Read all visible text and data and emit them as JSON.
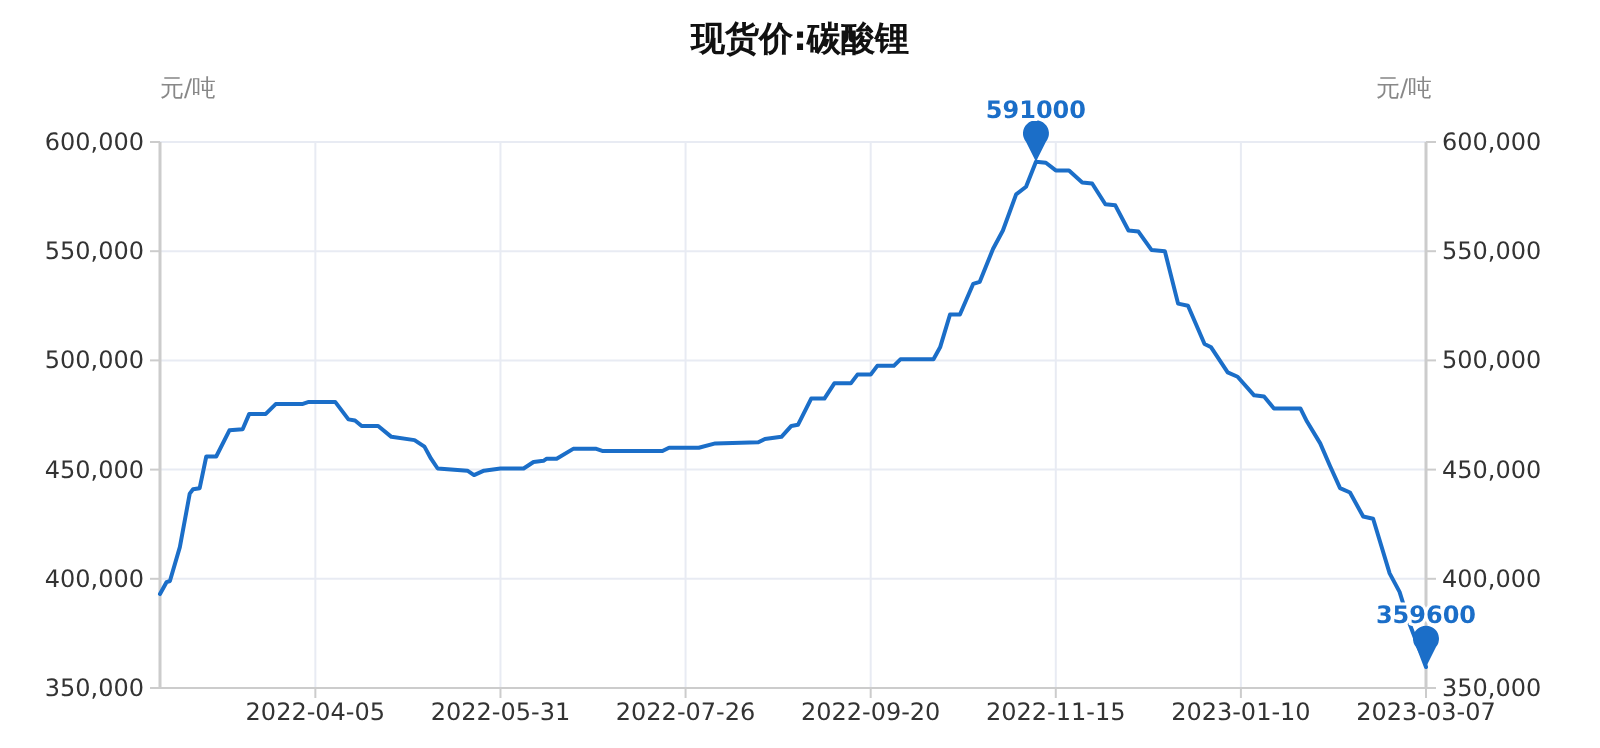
{
  "chart_data": {
    "type": "line",
    "title": "现货价:碳酸锂",
    "ylabel": "元/吨",
    "y2label": "元/吨",
    "xlim": [
      "2022-02-17",
      "2023-03-07"
    ],
    "xticks": [
      "2022-04-05",
      "2022-05-31",
      "2022-07-26",
      "2022-09-20",
      "2022-11-15",
      "2023-01-10",
      "2023-03-07"
    ],
    "ylim": [
      350000,
      600000
    ],
    "yticks": [
      {
        "value": 350000,
        "label": "350,000"
      },
      {
        "value": 400000,
        "label": "400,000"
      },
      {
        "value": 450000,
        "label": "450,000"
      },
      {
        "value": 500000,
        "label": "500,000"
      },
      {
        "value": 550000,
        "label": "550,000"
      },
      {
        "value": 600000,
        "label": "600,000"
      }
    ],
    "y2lim": [
      350000,
      600000
    ],
    "y2ticks": [
      {
        "value": 350000,
        "label": "350,000"
      },
      {
        "value": 400000,
        "label": "400,000"
      },
      {
        "value": 450000,
        "label": "450,000"
      },
      {
        "value": 500000,
        "label": "500,000"
      },
      {
        "value": 550000,
        "label": "550,000"
      },
      {
        "value": 600000,
        "label": "600,000"
      }
    ],
    "grid": true,
    "marker": "none",
    "line_style": "solid",
    "annotations": [
      {
        "text": "591000",
        "x": "2022-11-09",
        "y": 591000
      },
      {
        "text": "359600",
        "x": "2023-03-07",
        "y": 359600
      }
    ],
    "series": [
      {
        "color": "#1b6ec8",
        "x": [
          "2022-02-17",
          "2022-02-19",
          "2022-02-20",
          "2022-02-23",
          "2022-02-26",
          "2022-02-27",
          "2022-03-01",
          "2022-03-03",
          "2022-03-06",
          "2022-03-10",
          "2022-03-14",
          "2022-03-16",
          "2022-03-21",
          "2022-03-24",
          "2022-04-01",
          "2022-04-03",
          "2022-04-11",
          "2022-04-15",
          "2022-04-17",
          "2022-04-19",
          "2022-04-24",
          "2022-04-28",
          "2022-05-05",
          "2022-05-08",
          "2022-05-10",
          "2022-05-12",
          "2022-05-16",
          "2022-05-21",
          "2022-05-23",
          "2022-05-26",
          "2022-05-31",
          "2022-06-07",
          "2022-06-10",
          "2022-06-13",
          "2022-06-14",
          "2022-06-17",
          "2022-06-22",
          "2022-06-29",
          "2022-07-01",
          "2022-07-19",
          "2022-07-21",
          "2022-07-30",
          "2022-08-04",
          "2022-08-17",
          "2022-08-19",
          "2022-08-24",
          "2022-08-27",
          "2022-08-29",
          "2022-09-02",
          "2022-09-06",
          "2022-09-09",
          "2022-09-14",
          "2022-09-16",
          "2022-09-20",
          "2022-09-22",
          "2022-09-27",
          "2022-09-29",
          "2022-10-09",
          "2022-10-11",
          "2022-10-14",
          "2022-10-17",
          "2022-10-21",
          "2022-10-23",
          "2022-10-27",
          "2022-10-30",
          "2022-11-03",
          "2022-11-06",
          "2022-11-09",
          "2022-11-12",
          "2022-11-15",
          "2022-11-19",
          "2022-11-23",
          "2022-11-26",
          "2022-11-30",
          "2022-12-03",
          "2022-12-07",
          "2022-12-10",
          "2022-12-14",
          "2022-12-18",
          "2022-12-22",
          "2022-12-25",
          "2022-12-30",
          "2023-01-01",
          "2023-01-06",
          "2023-01-09",
          "2023-01-14",
          "2023-01-17",
          "2023-01-20",
          "2023-01-28",
          "2023-01-30",
          "2023-02-03",
          "2023-02-06",
          "2023-02-09",
          "2023-02-12",
          "2023-02-16",
          "2023-02-19",
          "2023-02-24",
          "2023-02-27",
          "2023-03-02",
          "2023-03-07"
        ],
        "values": [
          393000,
          398500,
          399000,
          414500,
          439000,
          441000,
          441500,
          456000,
          456000,
          468000,
          468500,
          475500,
          475500,
          480000,
          480000,
          481000,
          481000,
          473000,
          472500,
          470000,
          470000,
          465000,
          463500,
          460500,
          455000,
          450500,
          450000,
          449500,
          447500,
          449500,
          450500,
          450500,
          453500,
          454000,
          455000,
          455000,
          459500,
          459500,
          458500,
          458500,
          460000,
          460000,
          462000,
          462500,
          464000,
          465000,
          470000,
          470500,
          482500,
          482500,
          489500,
          489500,
          493500,
          493500,
          497500,
          497500,
          500500,
          500500,
          506000,
          521000,
          521000,
          535000,
          536000,
          551000,
          559500,
          576000,
          579500,
          591000,
          590500,
          587000,
          587000,
          581500,
          581000,
          571500,
          571000,
          559500,
          559000,
          550500,
          550000,
          526000,
          525000,
          507500,
          506000,
          494500,
          492500,
          484000,
          483500,
          478000,
          478000,
          472000,
          462000,
          451500,
          441500,
          439500,
          428500,
          427500,
          402500,
          394000,
          379500,
          359600
        ]
      }
    ]
  }
}
